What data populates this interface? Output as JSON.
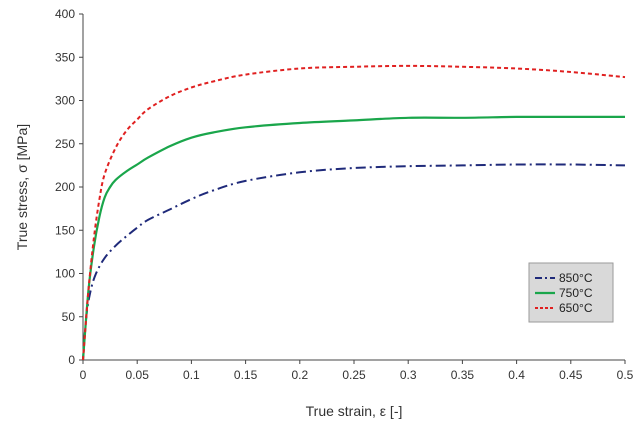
{
  "chart_data": {
    "type": "line",
    "title": "",
    "xlabel": "True strain, ε [-]",
    "ylabel": "True stress, σ [MPa]",
    "xlim": [
      0,
      0.5
    ],
    "ylim": [
      0,
      400
    ],
    "x_ticks": [
      0,
      0.05,
      0.1,
      0.15,
      0.2,
      0.25,
      0.3,
      0.35,
      0.4,
      0.45,
      0.5
    ],
    "x_tick_labels": [
      "0",
      "0.05",
      "0.1",
      "0.15",
      "0.2",
      "0.25",
      "0.3",
      "0.35",
      "0.4",
      "0.45",
      "0.5"
    ],
    "y_ticks": [
      0,
      50,
      100,
      150,
      200,
      250,
      300,
      350,
      400
    ],
    "y_tick_labels": [
      "0",
      "50",
      "100",
      "150",
      "200",
      "250",
      "300",
      "350",
      "400"
    ],
    "grid": false,
    "legend_position": "bottom-right",
    "series": [
      {
        "name": "850°C",
        "color": "#1f2a7a",
        "style": "dash-dot",
        "x": [
          0,
          0.003,
          0.007,
          0.012,
          0.02,
          0.03,
          0.04,
          0.05,
          0.06,
          0.08,
          0.1,
          0.12,
          0.15,
          0.2,
          0.25,
          0.3,
          0.35,
          0.4,
          0.45,
          0.5
        ],
        "y": [
          0,
          50,
          80,
          100,
          118,
          132,
          143,
          153,
          162,
          174,
          186,
          196,
          207,
          217,
          222,
          224,
          225,
          226,
          226,
          225
        ]
      },
      {
        "name": "750°C",
        "color": "#1aa64b",
        "style": "solid",
        "x": [
          0,
          0.005,
          0.01,
          0.015,
          0.02,
          0.025,
          0.03,
          0.04,
          0.05,
          0.06,
          0.08,
          0.1,
          0.12,
          0.15,
          0.2,
          0.25,
          0.3,
          0.35,
          0.4,
          0.45,
          0.5
        ],
        "y": [
          0,
          80,
          130,
          165,
          188,
          200,
          208,
          218,
          226,
          234,
          247,
          257,
          263,
          269,
          274,
          277,
          280,
          280,
          281,
          281,
          281
        ]
      },
      {
        "name": "650°C",
        "color": "#e02020",
        "style": "dotted",
        "x": [
          0,
          0.005,
          0.01,
          0.015,
          0.02,
          0.03,
          0.04,
          0.05,
          0.06,
          0.08,
          0.1,
          0.12,
          0.15,
          0.2,
          0.25,
          0.3,
          0.35,
          0.4,
          0.45,
          0.5
        ],
        "y": [
          0,
          80,
          140,
          185,
          215,
          245,
          265,
          278,
          290,
          305,
          315,
          322,
          330,
          337,
          339,
          340,
          339,
          337,
          333,
          327
        ]
      }
    ]
  }
}
